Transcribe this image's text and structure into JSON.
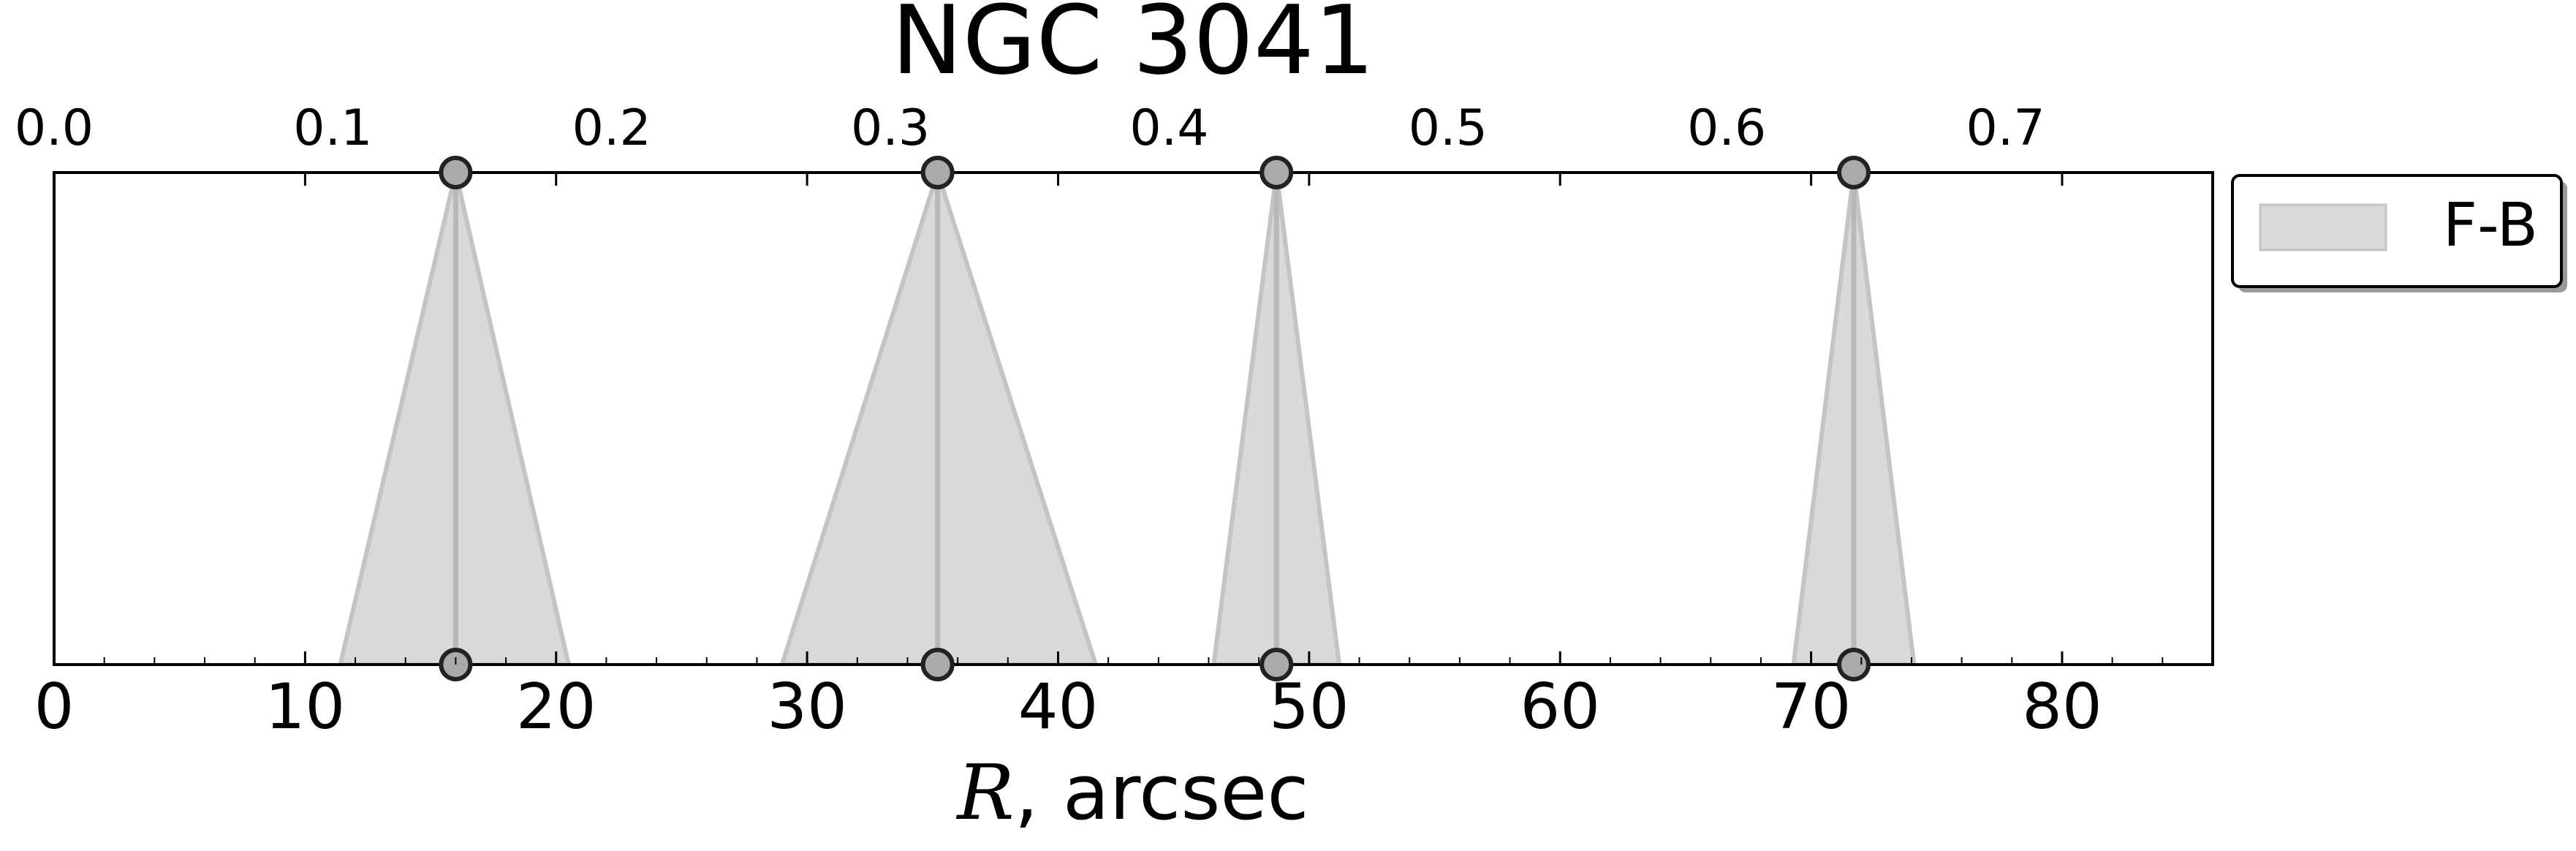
{
  "chart_data": {
    "type": "area",
    "title": "NGC 3041",
    "xlabel_italic": "R",
    "xlabel_rest": ", arcsec",
    "xlim": [
      0,
      86
    ],
    "x_ticks": [
      0,
      10,
      20,
      30,
      40,
      50,
      60,
      70,
      80
    ],
    "x_tick_labels": [
      "0",
      "10",
      "20",
      "30",
      "40",
      "50",
      "60",
      "70",
      "80"
    ],
    "top_axis": {
      "xlim": [
        0,
        0.7743
      ],
      "ticks": [
        0.0,
        0.1,
        0.2,
        0.3,
        0.4,
        0.5,
        0.6,
        0.7
      ],
      "tick_labels": [
        "0.0",
        "0.1",
        "0.2",
        "0.3",
        "0.4",
        "0.5",
        "0.6",
        "0.7"
      ]
    },
    "legend": {
      "position": "outside-right-top",
      "entries": [
        {
          "label": "F-B",
          "color": "#d9d9d9"
        }
      ]
    },
    "grid": false,
    "series": [
      {
        "name": "F-B",
        "features": [
          {
            "center": 16.0,
            "base_left": 11.4,
            "base_right": 20.5
          },
          {
            "center": 35.2,
            "base_left": 29.0,
            "base_right": 41.5
          },
          {
            "center": 48.7,
            "base_left": 46.2,
            "base_right": 51.2
          },
          {
            "center": 71.7,
            "base_left": 69.3,
            "base_right": 74.1
          }
        ]
      }
    ],
    "colors": {
      "fill": "#d9d9d9",
      "edge": "#c4c4c4",
      "center_line": "#b8b8b8",
      "marker_fill": "#aaaaaa",
      "marker_edge": "#222222"
    }
  }
}
